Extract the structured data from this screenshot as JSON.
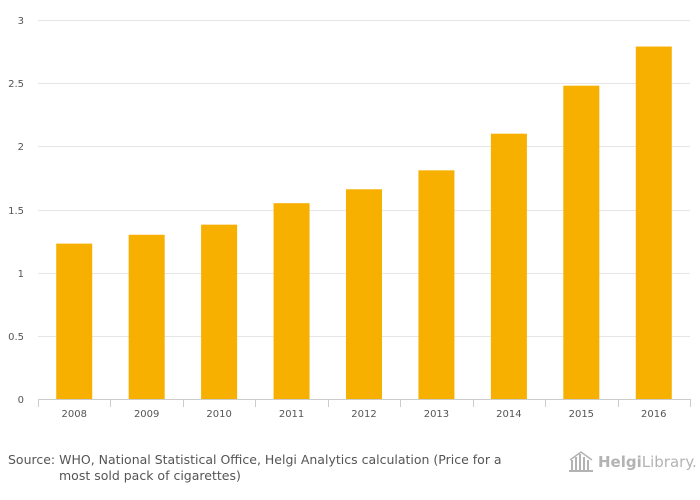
{
  "chart_data": {
    "type": "bar",
    "categories": [
      "2008",
      "2009",
      "2010",
      "2011",
      "2012",
      "2013",
      "2014",
      "2015",
      "2016"
    ],
    "values": [
      1.23,
      1.3,
      1.38,
      1.55,
      1.66,
      1.81,
      2.1,
      2.48,
      2.79
    ],
    "y_ticks": [
      "0",
      "0.5",
      "1",
      "1.5",
      "2",
      "2.5",
      "3"
    ],
    "ylim": [
      0,
      3
    ],
    "title": "",
    "xlabel": "",
    "ylabel": "",
    "grid": true,
    "bar_color": "#f7b000",
    "grid_color": "#e6e6e6",
    "axis_color": "#cccccc"
  },
  "footer": {
    "source_line1": "Source: WHO, National Statistical Office, Helgi Analytics calculation (Price for a",
    "source_line2": "most sold pack of cigarettes)"
  },
  "logo": {
    "part1": "Helgi",
    "part2": "Library.",
    "icon": "library-building-icon"
  }
}
